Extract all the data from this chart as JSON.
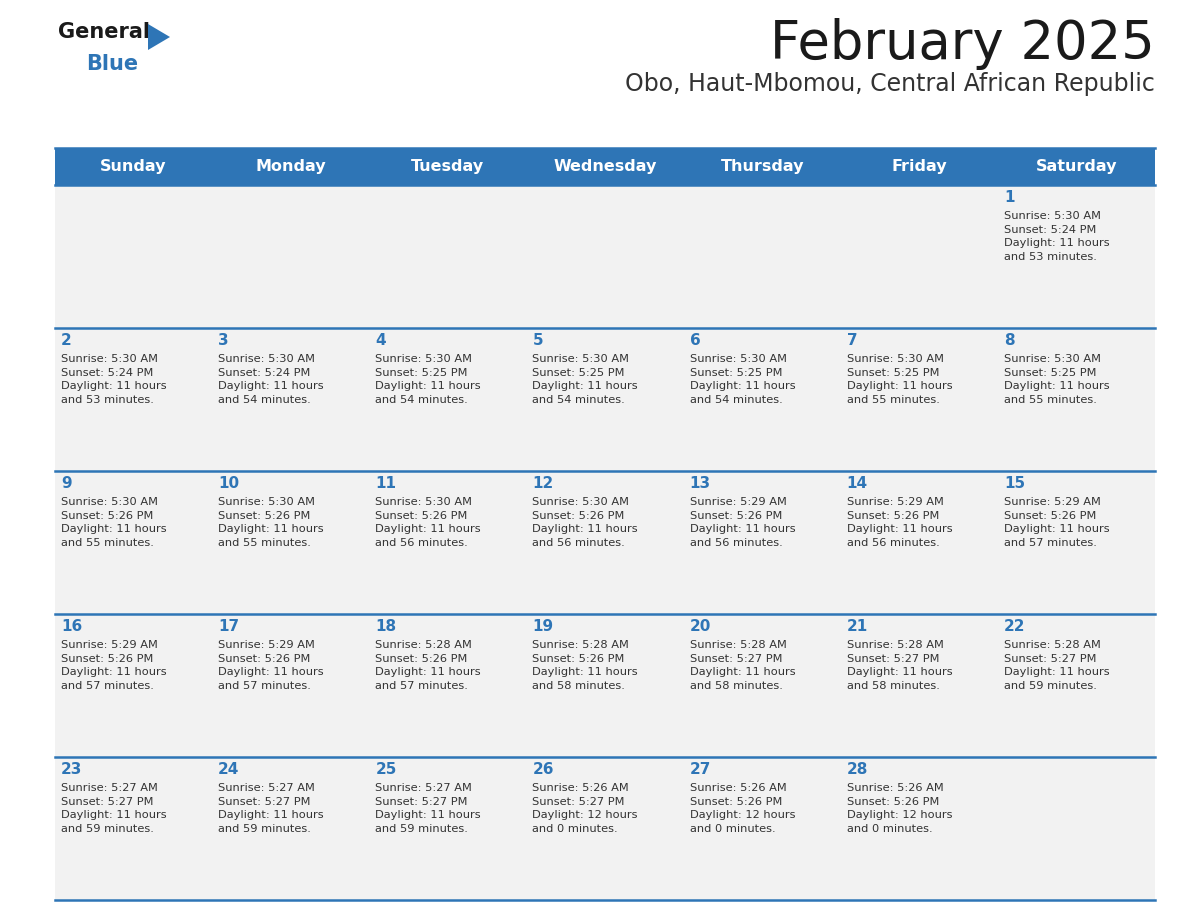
{
  "title": "February 2025",
  "subtitle": "Obo, Haut-Mbomou, Central African Republic",
  "header_bg": "#2E75B6",
  "header_text_color": "#FFFFFF",
  "cell_bg": "#F2F2F2",
  "day_names": [
    "Sunday",
    "Monday",
    "Tuesday",
    "Wednesday",
    "Thursday",
    "Friday",
    "Saturday"
  ],
  "title_color": "#1a1a1a",
  "subtitle_color": "#333333",
  "day_number_color": "#2E75B6",
  "text_color": "#333333",
  "line_color": "#2E75B6",
  "logo_general_color": "#1a1a1a",
  "logo_blue_color": "#2E75B6",
  "calendar_data": [
    [
      {
        "day": null,
        "info": null
      },
      {
        "day": null,
        "info": null
      },
      {
        "day": null,
        "info": null
      },
      {
        "day": null,
        "info": null
      },
      {
        "day": null,
        "info": null
      },
      {
        "day": null,
        "info": null
      },
      {
        "day": 1,
        "info": "Sunrise: 5:30 AM\nSunset: 5:24 PM\nDaylight: 11 hours\nand 53 minutes."
      }
    ],
    [
      {
        "day": 2,
        "info": "Sunrise: 5:30 AM\nSunset: 5:24 PM\nDaylight: 11 hours\nand 53 minutes."
      },
      {
        "day": 3,
        "info": "Sunrise: 5:30 AM\nSunset: 5:24 PM\nDaylight: 11 hours\nand 54 minutes."
      },
      {
        "day": 4,
        "info": "Sunrise: 5:30 AM\nSunset: 5:25 PM\nDaylight: 11 hours\nand 54 minutes."
      },
      {
        "day": 5,
        "info": "Sunrise: 5:30 AM\nSunset: 5:25 PM\nDaylight: 11 hours\nand 54 minutes."
      },
      {
        "day": 6,
        "info": "Sunrise: 5:30 AM\nSunset: 5:25 PM\nDaylight: 11 hours\nand 54 minutes."
      },
      {
        "day": 7,
        "info": "Sunrise: 5:30 AM\nSunset: 5:25 PM\nDaylight: 11 hours\nand 55 minutes."
      },
      {
        "day": 8,
        "info": "Sunrise: 5:30 AM\nSunset: 5:25 PM\nDaylight: 11 hours\nand 55 minutes."
      }
    ],
    [
      {
        "day": 9,
        "info": "Sunrise: 5:30 AM\nSunset: 5:26 PM\nDaylight: 11 hours\nand 55 minutes."
      },
      {
        "day": 10,
        "info": "Sunrise: 5:30 AM\nSunset: 5:26 PM\nDaylight: 11 hours\nand 55 minutes."
      },
      {
        "day": 11,
        "info": "Sunrise: 5:30 AM\nSunset: 5:26 PM\nDaylight: 11 hours\nand 56 minutes."
      },
      {
        "day": 12,
        "info": "Sunrise: 5:30 AM\nSunset: 5:26 PM\nDaylight: 11 hours\nand 56 minutes."
      },
      {
        "day": 13,
        "info": "Sunrise: 5:29 AM\nSunset: 5:26 PM\nDaylight: 11 hours\nand 56 minutes."
      },
      {
        "day": 14,
        "info": "Sunrise: 5:29 AM\nSunset: 5:26 PM\nDaylight: 11 hours\nand 56 minutes."
      },
      {
        "day": 15,
        "info": "Sunrise: 5:29 AM\nSunset: 5:26 PM\nDaylight: 11 hours\nand 57 minutes."
      }
    ],
    [
      {
        "day": 16,
        "info": "Sunrise: 5:29 AM\nSunset: 5:26 PM\nDaylight: 11 hours\nand 57 minutes."
      },
      {
        "day": 17,
        "info": "Sunrise: 5:29 AM\nSunset: 5:26 PM\nDaylight: 11 hours\nand 57 minutes."
      },
      {
        "day": 18,
        "info": "Sunrise: 5:28 AM\nSunset: 5:26 PM\nDaylight: 11 hours\nand 57 minutes."
      },
      {
        "day": 19,
        "info": "Sunrise: 5:28 AM\nSunset: 5:26 PM\nDaylight: 11 hours\nand 58 minutes."
      },
      {
        "day": 20,
        "info": "Sunrise: 5:28 AM\nSunset: 5:27 PM\nDaylight: 11 hours\nand 58 minutes."
      },
      {
        "day": 21,
        "info": "Sunrise: 5:28 AM\nSunset: 5:27 PM\nDaylight: 11 hours\nand 58 minutes."
      },
      {
        "day": 22,
        "info": "Sunrise: 5:28 AM\nSunset: 5:27 PM\nDaylight: 11 hours\nand 59 minutes."
      }
    ],
    [
      {
        "day": 23,
        "info": "Sunrise: 5:27 AM\nSunset: 5:27 PM\nDaylight: 11 hours\nand 59 minutes."
      },
      {
        "day": 24,
        "info": "Sunrise: 5:27 AM\nSunset: 5:27 PM\nDaylight: 11 hours\nand 59 minutes."
      },
      {
        "day": 25,
        "info": "Sunrise: 5:27 AM\nSunset: 5:27 PM\nDaylight: 11 hours\nand 59 minutes."
      },
      {
        "day": 26,
        "info": "Sunrise: 5:26 AM\nSunset: 5:27 PM\nDaylight: 12 hours\nand 0 minutes."
      },
      {
        "day": 27,
        "info": "Sunrise: 5:26 AM\nSunset: 5:26 PM\nDaylight: 12 hours\nand 0 minutes."
      },
      {
        "day": 28,
        "info": "Sunrise: 5:26 AM\nSunset: 5:26 PM\nDaylight: 12 hours\nand 0 minutes."
      },
      {
        "day": null,
        "info": null
      }
    ]
  ]
}
